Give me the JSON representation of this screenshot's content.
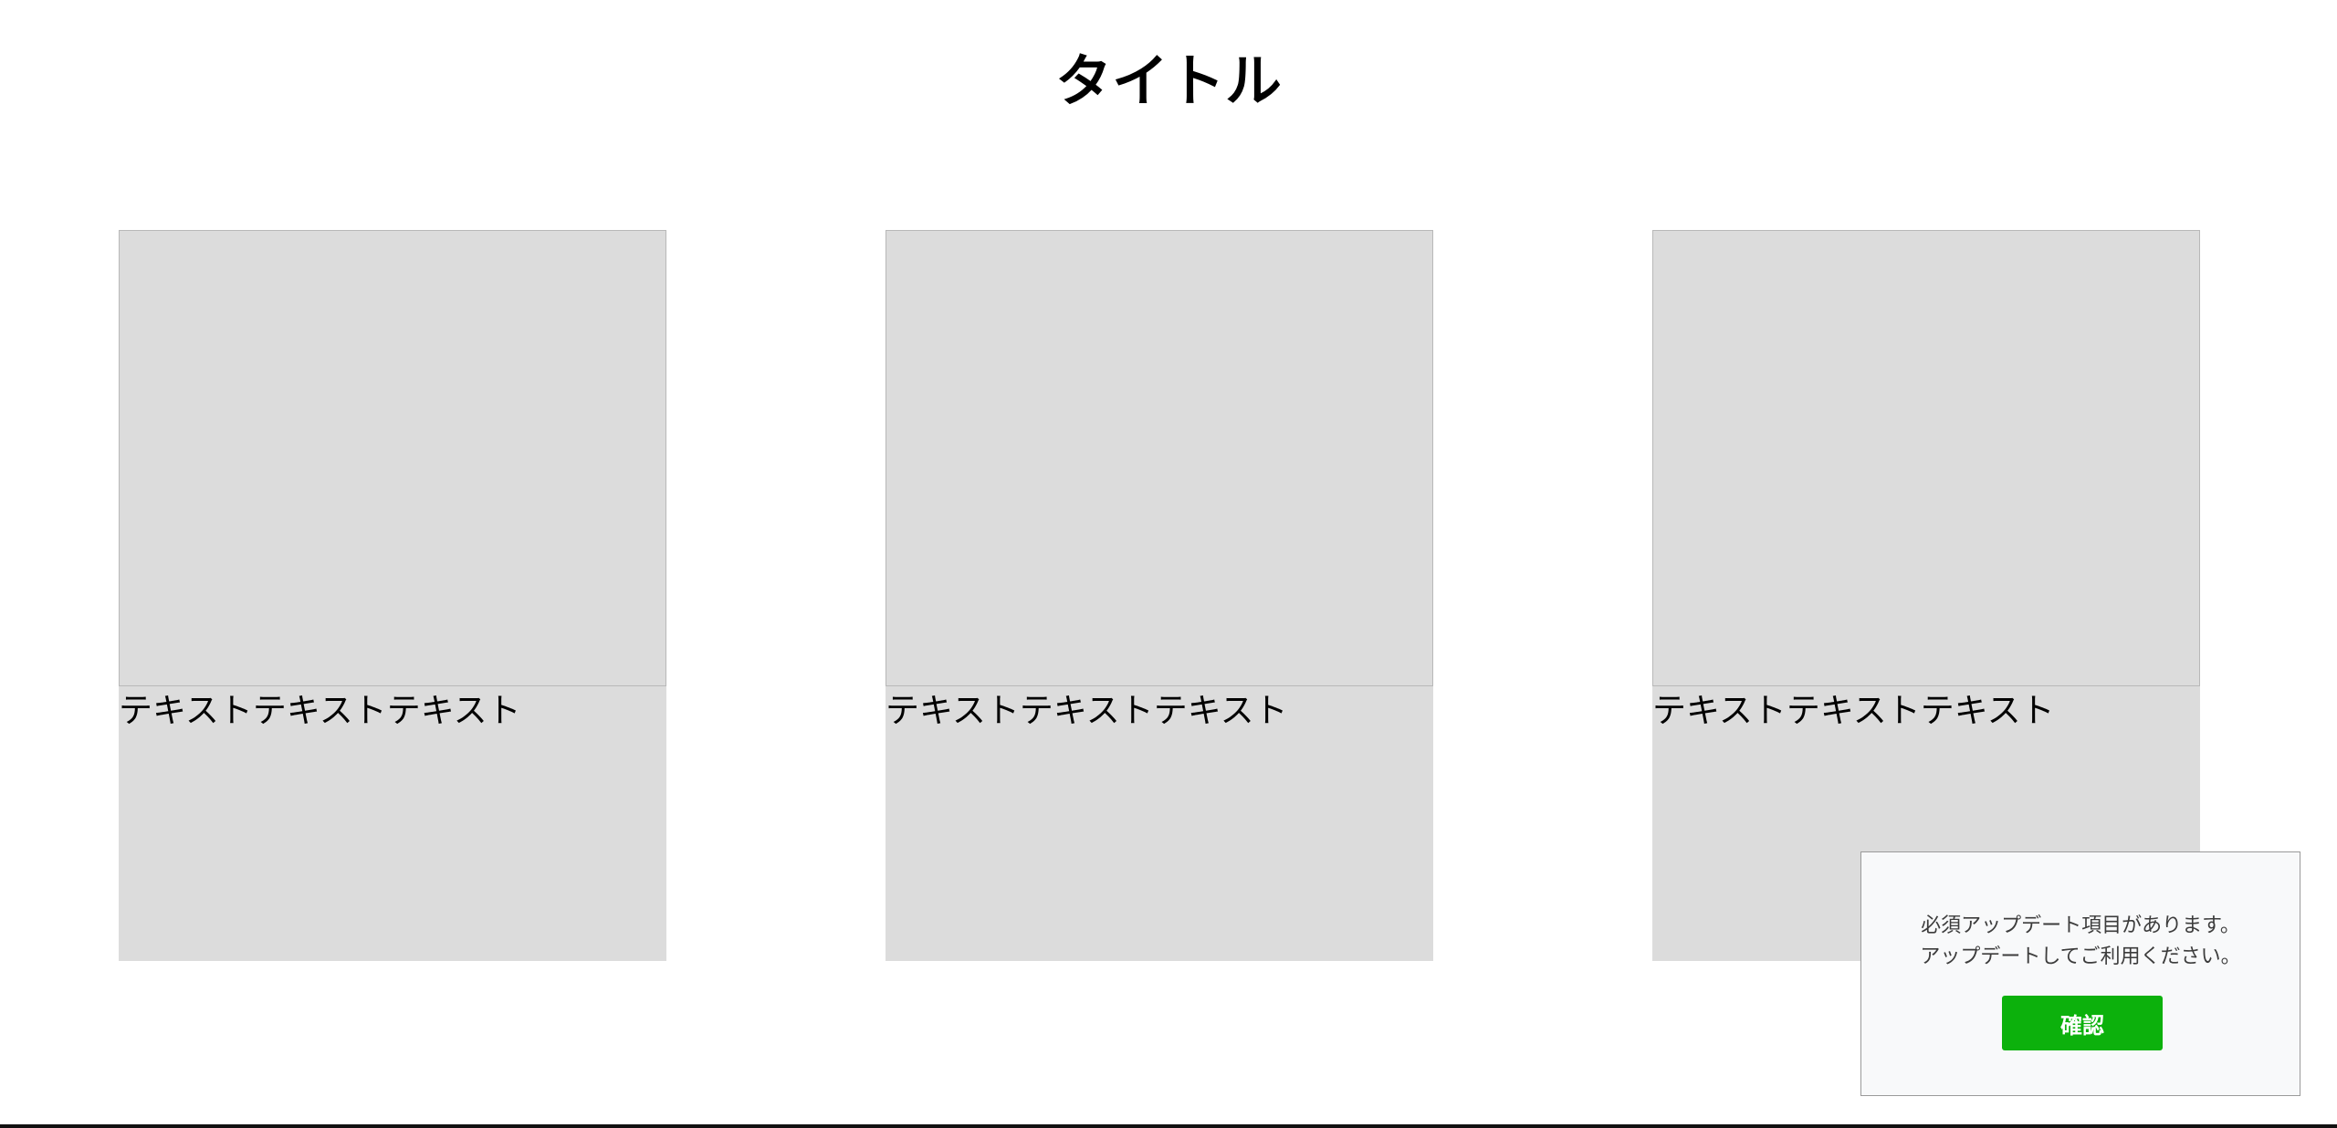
{
  "page": {
    "title": "タイトル"
  },
  "cards": [
    {
      "caption": "テキストテキストテキスト"
    },
    {
      "caption": "テキストテキストテキスト"
    },
    {
      "caption": "テキストテキストテキスト"
    }
  ],
  "dialog": {
    "message_line1": "必須アップデート項目があります。",
    "message_line2": "アップデートしてご利用ください。",
    "confirm_label": "確認",
    "confirm_color": "#0cb10c"
  }
}
